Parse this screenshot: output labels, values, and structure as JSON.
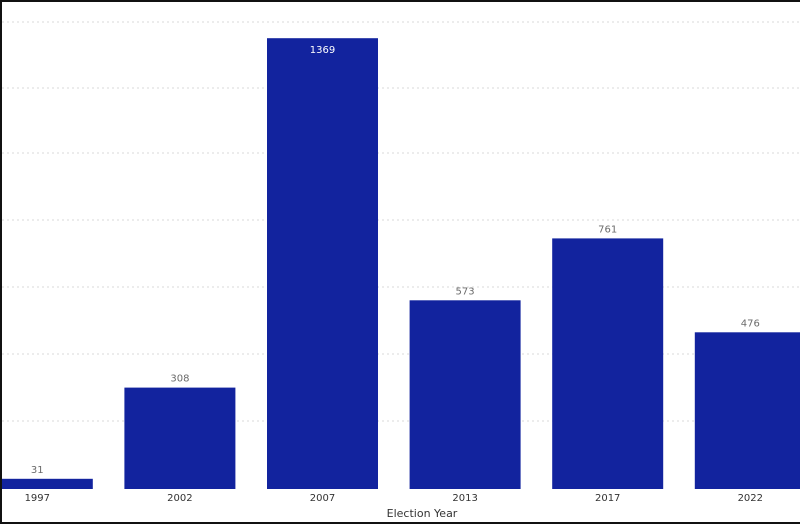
{
  "chart_data": {
    "type": "bar",
    "categories": [
      "1997",
      "2002",
      "2007",
      "2013",
      "2017",
      "2022"
    ],
    "values": [
      31,
      308,
      1369,
      573,
      761,
      476
    ],
    "title": "",
    "xlabel": "Election Year",
    "ylabel": "",
    "ylim": [
      0,
      1400
    ],
    "grid": true,
    "bar_color": "#12239e",
    "data_labels": true
  }
}
